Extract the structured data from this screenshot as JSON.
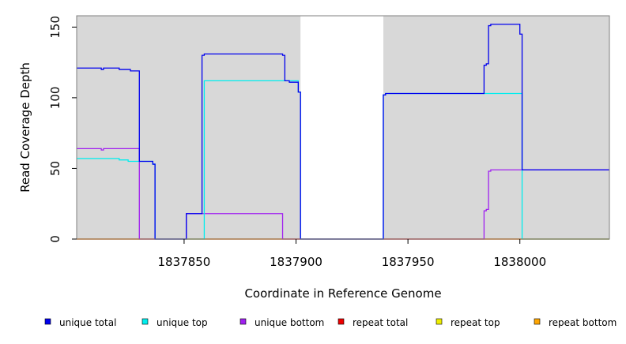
{
  "chart_data": {
    "type": "line",
    "xlabel": "Coordinate in Reference Genome",
    "ylabel": "Read Coverage Depth",
    "xlim": [
      1837802,
      1838040
    ],
    "ylim": [
      0,
      158
    ],
    "x_ticks": [
      1837850,
      1837900,
      1837950,
      1838000
    ],
    "x_tick_labels": [
      "1837850",
      "1837900",
      "1837950",
      "1838000"
    ],
    "y_ticks": [
      0,
      50,
      100,
      150
    ],
    "y_tick_labels": [
      "0",
      "50",
      "100",
      "150"
    ],
    "shaded_regions": [
      [
        1837802,
        1837902
      ],
      [
        1837939,
        1838040
      ]
    ],
    "legend": {
      "placement": "bottom",
      "entries": [
        {
          "label": "unique total",
          "color": "#0000ee"
        },
        {
          "label": "unique top",
          "color": "#00eeee"
        },
        {
          "label": "unique bottom",
          "color": "#a020f0"
        },
        {
          "label": "repeat total",
          "color": "#ee0000"
        },
        {
          "label": "repeat top",
          "color": "#eeee00"
        },
        {
          "label": "repeat bottom",
          "color": "#ffa500"
        }
      ]
    },
    "series": [
      {
        "name": "unique total",
        "color": "#0000ee",
        "x": [
          1837802,
          1837813,
          1837813,
          1837814,
          1837814,
          1837821,
          1837821,
          1837826,
          1837826,
          1837830,
          1837830,
          1837836,
          1837836,
          1837837,
          1837837,
          1837851,
          1837851,
          1837858,
          1837858,
          1837859,
          1837859,
          1837894,
          1837894,
          1837895,
          1837895,
          1837897,
          1837897,
          1837901,
          1837901,
          1837902,
          1837902,
          1837939,
          1837939,
          1837940,
          1837940,
          1837984,
          1837984,
          1837985,
          1837985,
          1837986,
          1837986,
          1837987,
          1837987,
          1838000,
          1838000,
          1838001,
          1838001,
          1838040
        ],
        "y": [
          121,
          121,
          120,
          120,
          121,
          121,
          120,
          120,
          119,
          119,
          55,
          55,
          53,
          53,
          0,
          0,
          18,
          18,
          130,
          130,
          131,
          131,
          130,
          130,
          112,
          112,
          111,
          111,
          104,
          104,
          0,
          0,
          102,
          102,
          103,
          103,
          123,
          123,
          124,
          124,
          151,
          151,
          152,
          152,
          145,
          145,
          49,
          49
        ]
      },
      {
        "name": "unique top",
        "color": "#00eeee",
        "x": [
          1837802,
          1837821,
          1837821,
          1837825,
          1837825,
          1837830,
          1837830,
          1837836,
          1837836,
          1837837,
          1837837,
          1837859,
          1837859,
          1837894,
          1837894,
          1837901,
          1837901,
          1837902,
          1837902,
          1837939,
          1837939,
          1837940,
          1837940,
          1838001,
          1838001,
          1838040
        ],
        "y": [
          57,
          57,
          56,
          56,
          55,
          55,
          55,
          55,
          53,
          53,
          0,
          0,
          112,
          112,
          112,
          112,
          104,
          104,
          0,
          0,
          102,
          102,
          103,
          103,
          0,
          0
        ]
      },
      {
        "name": "unique bottom",
        "color": "#a020f0",
        "x": [
          1837802,
          1837813,
          1837813,
          1837814,
          1837814,
          1837830,
          1837830,
          1837851,
          1837851,
          1837894,
          1837894,
          1837984,
          1837984,
          1837985,
          1837985,
          1837986,
          1837986,
          1837987,
          1837987,
          1838040
        ],
        "y": [
          64,
          64,
          63,
          63,
          64,
          64,
          0,
          0,
          18,
          18,
          0,
          0,
          20,
          20,
          21,
          21,
          48,
          48,
          49,
          49
        ]
      },
      {
        "name": "repeat total",
        "color": "#ee0000",
        "x": [
          1837802,
          1838040
        ],
        "y": [
          0,
          0
        ]
      },
      {
        "name": "repeat top",
        "color": "#eeee00",
        "x": [
          1837802,
          1838040
        ],
        "y": [
          0,
          0
        ]
      },
      {
        "name": "repeat bottom",
        "color": "#ffa500",
        "x": [
          1837802,
          1838040
        ],
        "y": [
          0,
          0
        ]
      }
    ]
  }
}
